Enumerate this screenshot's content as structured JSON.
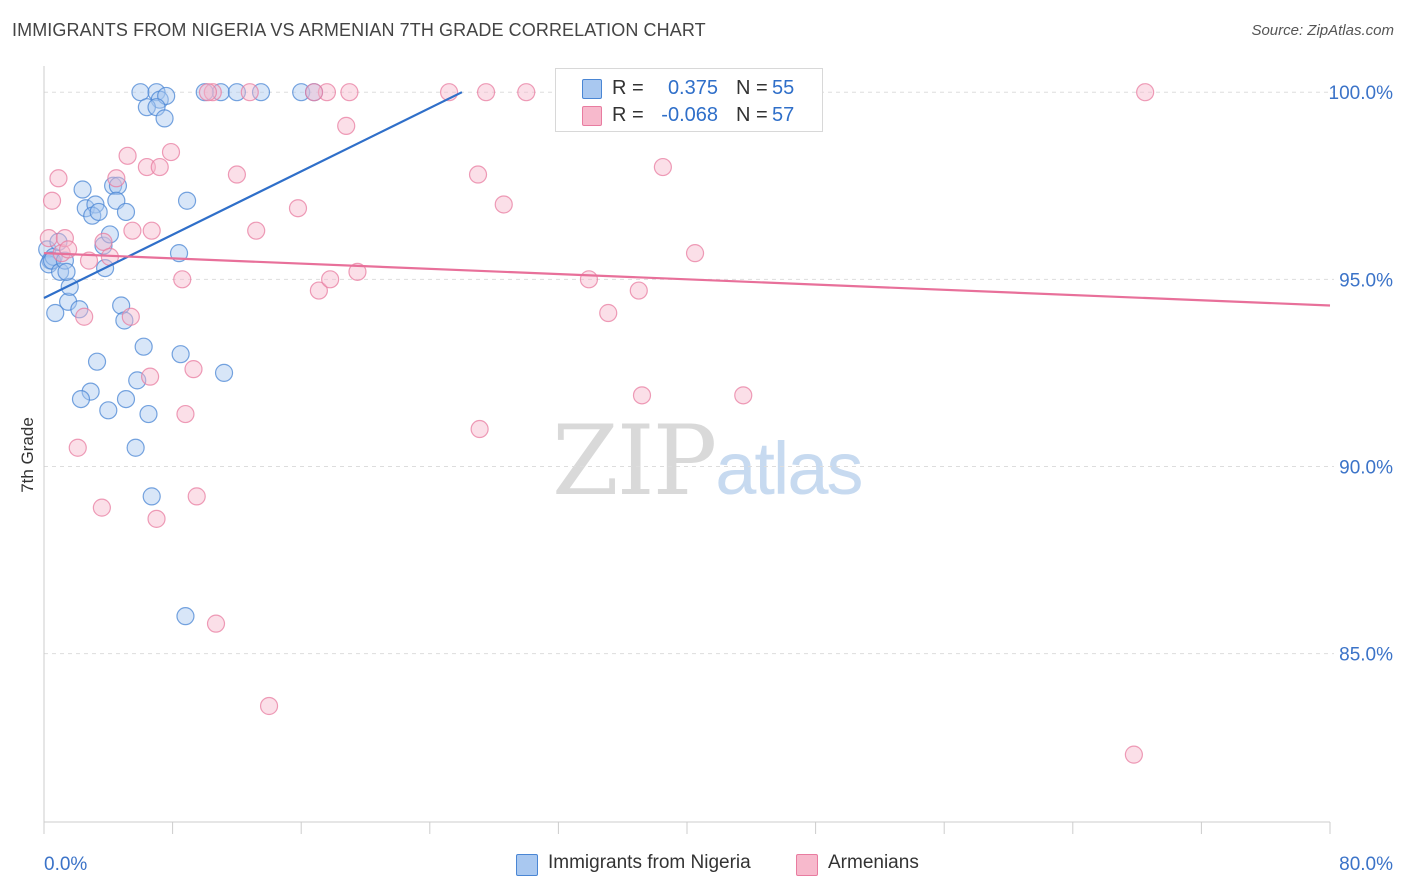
{
  "header": {
    "title": "IMMIGRANTS FROM NIGERIA VS ARMENIAN 7TH GRADE CORRELATION CHART",
    "source": "Source: ZipAtlas.com"
  },
  "watermark": {
    "zip": "ZIP",
    "atlas": "atlas"
  },
  "legend_stats": [
    {
      "r_label": "R =",
      "r_value": "0.375",
      "n_label": "N =",
      "n_value": "55",
      "color": "#a9c8f0"
    },
    {
      "r_label": "R =",
      "r_value": "-0.068",
      "n_label": "N =",
      "n_value": "57",
      "color": "#f7b9cc"
    }
  ],
  "bottom_legend": [
    {
      "label": "Immigrants from Nigeria",
      "color": "#a9c8f0"
    },
    {
      "label": "Armenians",
      "color": "#f7b9cc"
    }
  ],
  "chart_data": {
    "type": "scatter",
    "title": "IMMIGRANTS FROM NIGERIA VS ARMENIAN 7TH GRADE CORRELATION CHART",
    "xlabel": "",
    "ylabel": "7th Grade",
    "xlim": [
      0,
      80
    ],
    "ylim": [
      80.5,
      100.7
    ],
    "x_tick_labels": [
      "0.0%",
      "80.0%"
    ],
    "y_ticks": [
      85,
      90,
      95,
      100
    ],
    "y_tick_labels": [
      "85.0%",
      "90.0%",
      "95.0%",
      "100.0%"
    ],
    "grid": "horizontal dashed",
    "legend_position": "top-center",
    "series": [
      {
        "name": "Immigrants from Nigeria",
        "color": "#4a86d4",
        "fill": "#a9c8f0",
        "trend": {
          "x": [
            0.0,
            26.0
          ],
          "y": [
            94.5,
            100.0
          ],
          "color": "#2f6fc9"
        },
        "points": [
          [
            0.2,
            95.8
          ],
          [
            0.4,
            95.5
          ],
          [
            0.3,
            95.4
          ],
          [
            0.6,
            95.6
          ],
          [
            0.5,
            95.5
          ],
          [
            0.7,
            94.1
          ],
          [
            0.9,
            96.0
          ],
          [
            1.0,
            95.2
          ],
          [
            1.3,
            95.5
          ],
          [
            1.5,
            94.4
          ],
          [
            1.6,
            94.8
          ],
          [
            1.4,
            95.2
          ],
          [
            2.4,
            97.4
          ],
          [
            2.2,
            94.2
          ],
          [
            2.6,
            96.9
          ],
          [
            3.2,
            97.0
          ],
          [
            3.0,
            96.7
          ],
          [
            3.4,
            96.8
          ],
          [
            3.7,
            95.9
          ],
          [
            3.8,
            95.3
          ],
          [
            4.3,
            97.5
          ],
          [
            4.1,
            96.2
          ],
          [
            4.6,
            97.5
          ],
          [
            4.5,
            97.1
          ],
          [
            5.1,
            96.8
          ],
          [
            4.8,
            94.3
          ],
          [
            5.0,
            93.9
          ],
          [
            6.2,
            93.2
          ],
          [
            5.8,
            92.3
          ],
          [
            6.5,
            91.4
          ],
          [
            5.1,
            91.8
          ],
          [
            4.0,
            91.5
          ],
          [
            2.9,
            92.0
          ],
          [
            2.3,
            91.8
          ],
          [
            3.3,
            92.8
          ],
          [
            5.7,
            90.5
          ],
          [
            6.7,
            89.2
          ],
          [
            8.5,
            93.0
          ],
          [
            8.4,
            95.7
          ],
          [
            8.9,
            97.1
          ],
          [
            11.2,
            92.5
          ],
          [
            6.0,
            100.0
          ],
          [
            7.0,
            100.0
          ],
          [
            7.2,
            99.8
          ],
          [
            7.6,
            99.9
          ],
          [
            6.4,
            99.6
          ],
          [
            7.0,
            99.6
          ],
          [
            7.5,
            99.3
          ],
          [
            11.0,
            100.0
          ],
          [
            12.0,
            100.0
          ],
          [
            13.5,
            100.0
          ],
          [
            16.0,
            100.0
          ],
          [
            16.8,
            100.0
          ],
          [
            8.8,
            86.0
          ],
          [
            10.0,
            100.0
          ]
        ]
      },
      {
        "name": "Armenians",
        "color": "#e87ca0",
        "fill": "#f7b9cc",
        "trend": {
          "x": [
            0.0,
            80.0
          ],
          "y": [
            95.7,
            94.3
          ],
          "color": "#e8709a"
        },
        "points": [
          [
            0.3,
            96.1
          ],
          [
            0.5,
            97.1
          ],
          [
            0.9,
            97.7
          ],
          [
            1.1,
            95.7
          ],
          [
            1.3,
            96.1
          ],
          [
            1.5,
            95.8
          ],
          [
            2.5,
            94.0
          ],
          [
            2.8,
            95.5
          ],
          [
            3.7,
            96.0
          ],
          [
            4.1,
            95.6
          ],
          [
            4.5,
            97.7
          ],
          [
            5.2,
            98.3
          ],
          [
            5.4,
            94.0
          ],
          [
            6.4,
            98.0
          ],
          [
            6.7,
            96.3
          ],
          [
            5.5,
            96.3
          ],
          [
            7.2,
            98.0
          ],
          [
            7.9,
            98.4
          ],
          [
            8.6,
            95.0
          ],
          [
            8.8,
            91.4
          ],
          [
            9.3,
            92.6
          ],
          [
            9.5,
            89.2
          ],
          [
            6.6,
            92.4
          ],
          [
            2.1,
            90.5
          ],
          [
            3.6,
            88.9
          ],
          [
            7.0,
            88.6
          ],
          [
            10.5,
            100.0
          ],
          [
            10.2,
            100.0
          ],
          [
            12.0,
            97.8
          ],
          [
            13.2,
            96.3
          ],
          [
            14.0,
            83.6
          ],
          [
            10.7,
            85.8
          ],
          [
            15.8,
            96.9
          ],
          [
            17.1,
            94.7
          ],
          [
            17.8,
            95.0
          ],
          [
            18.8,
            99.1
          ],
          [
            19.5,
            95.2
          ],
          [
            17.6,
            100.0
          ],
          [
            25.2,
            100.0
          ],
          [
            27.0,
            97.8
          ],
          [
            28.6,
            97.0
          ],
          [
            27.5,
            100.0
          ],
          [
            27.1,
            91.0
          ],
          [
            30.0,
            100.0
          ],
          [
            34.5,
            100.0
          ],
          [
            33.9,
            95.0
          ],
          [
            35.1,
            94.1
          ],
          [
            37.0,
            94.7
          ],
          [
            37.2,
            91.9
          ],
          [
            38.5,
            98.0
          ],
          [
            40.5,
            95.7
          ],
          [
            43.5,
            91.9
          ],
          [
            68.5,
            100.0
          ],
          [
            67.8,
            82.3
          ],
          [
            16.8,
            100.0
          ],
          [
            19.0,
            100.0
          ],
          [
            12.8,
            100.0
          ]
        ]
      }
    ]
  }
}
